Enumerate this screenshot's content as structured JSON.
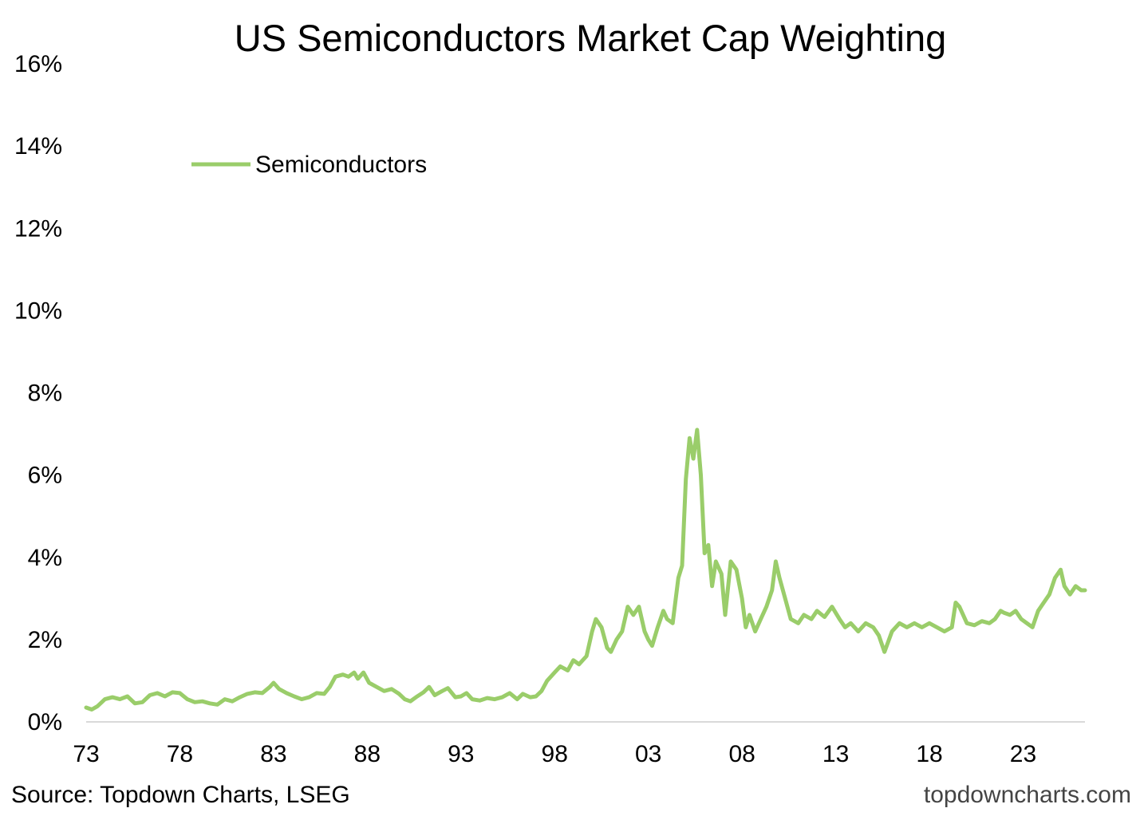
{
  "chart_data": {
    "type": "line",
    "title": "US Semiconductors Market Cap Weighting",
    "xlabel": "",
    "ylabel": "",
    "ylim": [
      0,
      16
    ],
    "xlim": [
      1973,
      2026.3
    ],
    "grid": false,
    "legend_position": "top-left",
    "y_ticks": [
      {
        "value": 0,
        "label": "0%"
      },
      {
        "value": 2,
        "label": "2%"
      },
      {
        "value": 4,
        "label": "4%"
      },
      {
        "value": 6,
        "label": "6%"
      },
      {
        "value": 8,
        "label": "8%"
      },
      {
        "value": 10,
        "label": "10%"
      },
      {
        "value": 12,
        "label": "12%"
      },
      {
        "value": 14,
        "label": "14%"
      },
      {
        "value": 16,
        "label": "16%"
      }
    ],
    "x_ticks": [
      {
        "value": 1973,
        "label": "73"
      },
      {
        "value": 1978,
        "label": "78"
      },
      {
        "value": 1983,
        "label": "83"
      },
      {
        "value": 1988,
        "label": "88"
      },
      {
        "value": 1993,
        "label": "93"
      },
      {
        "value": 1998,
        "label": "98"
      },
      {
        "value": 2003,
        "label": "03"
      },
      {
        "value": 2008,
        "label": "08"
      },
      {
        "value": 2013,
        "label": "13"
      },
      {
        "value": 2018,
        "label": "18"
      },
      {
        "value": 2023,
        "label": "23"
      }
    ],
    "series": [
      {
        "name": "Semiconductors",
        "color": "#9ACD6A",
        "points": [
          [
            1973.0,
            0.35
          ],
          [
            1973.3,
            0.3
          ],
          [
            1973.6,
            0.38
          ],
          [
            1974.0,
            0.55
          ],
          [
            1974.4,
            0.6
          ],
          [
            1974.8,
            0.55
          ],
          [
            1975.2,
            0.62
          ],
          [
            1975.6,
            0.45
          ],
          [
            1976.0,
            0.48
          ],
          [
            1976.4,
            0.65
          ],
          [
            1976.8,
            0.7
          ],
          [
            1977.2,
            0.62
          ],
          [
            1977.6,
            0.72
          ],
          [
            1978.0,
            0.7
          ],
          [
            1978.4,
            0.55
          ],
          [
            1978.8,
            0.48
          ],
          [
            1979.2,
            0.5
          ],
          [
            1979.6,
            0.45
          ],
          [
            1980.0,
            0.42
          ],
          [
            1980.4,
            0.55
          ],
          [
            1980.8,
            0.5
          ],
          [
            1981.2,
            0.6
          ],
          [
            1981.6,
            0.68
          ],
          [
            1982.0,
            0.72
          ],
          [
            1982.4,
            0.7
          ],
          [
            1982.8,
            0.85
          ],
          [
            1983.0,
            0.95
          ],
          [
            1983.3,
            0.8
          ],
          [
            1983.7,
            0.7
          ],
          [
            1984.1,
            0.62
          ],
          [
            1984.5,
            0.55
          ],
          [
            1984.9,
            0.6
          ],
          [
            1985.3,
            0.7
          ],
          [
            1985.7,
            0.68
          ],
          [
            1986.0,
            0.85
          ],
          [
            1986.3,
            1.1
          ],
          [
            1986.7,
            1.15
          ],
          [
            1987.0,
            1.1
          ],
          [
            1987.3,
            1.2
          ],
          [
            1987.5,
            1.05
          ],
          [
            1987.8,
            1.2
          ],
          [
            1988.1,
            0.95
          ],
          [
            1988.5,
            0.85
          ],
          [
            1988.9,
            0.75
          ],
          [
            1989.3,
            0.8
          ],
          [
            1989.7,
            0.68
          ],
          [
            1990.0,
            0.55
          ],
          [
            1990.3,
            0.5
          ],
          [
            1990.6,
            0.6
          ],
          [
            1991.0,
            0.72
          ],
          [
            1991.3,
            0.85
          ],
          [
            1991.6,
            0.65
          ],
          [
            1992.0,
            0.75
          ],
          [
            1992.3,
            0.82
          ],
          [
            1992.7,
            0.6
          ],
          [
            1993.0,
            0.62
          ],
          [
            1993.3,
            0.7
          ],
          [
            1993.6,
            0.55
          ],
          [
            1994.0,
            0.52
          ],
          [
            1994.4,
            0.58
          ],
          [
            1994.8,
            0.55
          ],
          [
            1995.2,
            0.6
          ],
          [
            1995.6,
            0.7
          ],
          [
            1996.0,
            0.55
          ],
          [
            1996.3,
            0.68
          ],
          [
            1996.7,
            0.6
          ],
          [
            1997.0,
            0.62
          ],
          [
            1997.3,
            0.75
          ],
          [
            1997.6,
            1.0
          ],
          [
            1998.0,
            1.2
          ],
          [
            1998.3,
            1.35
          ],
          [
            1998.7,
            1.25
          ],
          [
            1999.0,
            1.5
          ],
          [
            1999.3,
            1.4
          ],
          [
            1999.7,
            1.6
          ],
          [
            2000.0,
            2.2
          ],
          [
            2000.2,
            2.5
          ],
          [
            2000.5,
            2.3
          ],
          [
            2000.8,
            1.8
          ],
          [
            2001.0,
            1.7
          ],
          [
            2001.3,
            2.0
          ],
          [
            2001.6,
            2.2
          ],
          [
            2001.9,
            2.8
          ],
          [
            2002.2,
            2.6
          ],
          [
            2002.5,
            2.8
          ],
          [
            2002.8,
            2.2
          ],
          [
            2003.0,
            2.0
          ],
          [
            2003.2,
            1.85
          ],
          [
            2003.5,
            2.3
          ],
          [
            2003.8,
            2.7
          ],
          [
            2004.0,
            2.5
          ],
          [
            2004.3,
            2.4
          ],
          [
            2004.6,
            3.5
          ],
          [
            2004.8,
            3.8
          ],
          [
            2005.0,
            5.9
          ],
          [
            2005.2,
            6.9
          ],
          [
            2005.4,
            6.4
          ],
          [
            2005.6,
            7.1
          ],
          [
            2005.8,
            6.0
          ],
          [
            2006.0,
            4.1
          ],
          [
            2006.2,
            4.3
          ],
          [
            2006.4,
            3.3
          ],
          [
            2006.6,
            3.9
          ],
          [
            2006.9,
            3.6
          ],
          [
            2007.1,
            2.6
          ],
          [
            2007.4,
            3.9
          ],
          [
            2007.7,
            3.7
          ],
          [
            2008.0,
            3.0
          ],
          [
            2008.2,
            2.3
          ],
          [
            2008.4,
            2.6
          ],
          [
            2008.7,
            2.2
          ],
          [
            2009.0,
            2.5
          ],
          [
            2009.3,
            2.8
          ],
          [
            2009.6,
            3.2
          ],
          [
            2009.8,
            3.9
          ],
          [
            2010.0,
            3.5
          ],
          [
            2010.3,
            3.0
          ],
          [
            2010.6,
            2.5
          ],
          [
            2011.0,
            2.4
          ],
          [
            2011.3,
            2.6
          ],
          [
            2011.7,
            2.5
          ],
          [
            2012.0,
            2.7
          ],
          [
            2012.4,
            2.55
          ],
          [
            2012.8,
            2.8
          ],
          [
            2013.2,
            2.5
          ],
          [
            2013.5,
            2.3
          ],
          [
            2013.8,
            2.4
          ],
          [
            2014.2,
            2.2
          ],
          [
            2014.6,
            2.4
          ],
          [
            2015.0,
            2.3
          ],
          [
            2015.3,
            2.1
          ],
          [
            2015.6,
            1.7
          ],
          [
            2016.0,
            2.2
          ],
          [
            2016.4,
            2.4
          ],
          [
            2016.8,
            2.3
          ],
          [
            2017.2,
            2.4
          ],
          [
            2017.6,
            2.3
          ],
          [
            2018.0,
            2.4
          ],
          [
            2018.4,
            2.3
          ],
          [
            2018.8,
            2.2
          ],
          [
            2019.2,
            2.3
          ],
          [
            2019.4,
            2.9
          ],
          [
            2019.6,
            2.8
          ],
          [
            2019.8,
            2.6
          ],
          [
            2020.0,
            2.4
          ],
          [
            2020.4,
            2.35
          ],
          [
            2020.8,
            2.45
          ],
          [
            2021.2,
            2.4
          ],
          [
            2021.5,
            2.5
          ],
          [
            2021.8,
            2.7
          ],
          [
            2022.0,
            2.65
          ],
          [
            2022.3,
            2.6
          ],
          [
            2022.6,
            2.7
          ],
          [
            2022.9,
            2.5
          ],
          [
            2023.2,
            2.4
          ],
          [
            2023.5,
            2.3
          ],
          [
            2023.8,
            2.7
          ],
          [
            2024.1,
            2.9
          ],
          [
            2024.4,
            3.1
          ],
          [
            2024.7,
            3.5
          ],
          [
            2025.0,
            3.7
          ],
          [
            2025.2,
            3.3
          ],
          [
            2025.5,
            3.1
          ],
          [
            2025.8,
            3.3
          ],
          [
            2026.1,
            3.2
          ],
          [
            2026.3,
            3.2
          ]
        ]
      }
    ]
  },
  "footer": {
    "source": "Source: Topdown Charts, LSEG",
    "brand": "topdowncharts.com"
  }
}
